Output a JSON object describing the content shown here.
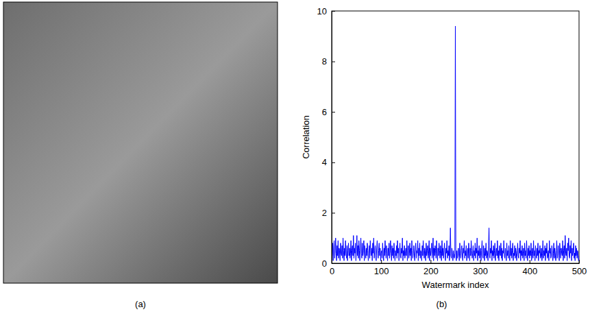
{
  "chart_data": [
    {
      "type": "image",
      "caption": "(a)"
    },
    {
      "type": "line",
      "caption": "(b)",
      "x_label": "Watermark index",
      "y_label": "Correlation",
      "color": "#0000ff",
      "xlim": [
        0,
        500
      ],
      "ylim": [
        0,
        10
      ],
      "xticks": [
        0,
        100,
        200,
        300,
        400,
        500
      ],
      "yticks": [
        0,
        2,
        4,
        6,
        8,
        10
      ],
      "x": [
        1,
        2,
        3,
        4,
        5,
        6,
        7,
        8,
        9,
        10,
        11,
        12,
        13,
        14,
        15,
        16,
        17,
        18,
        19,
        20,
        21,
        22,
        23,
        24,
        25,
        26,
        27,
        28,
        29,
        30,
        31,
        32,
        33,
        34,
        35,
        36,
        37,
        38,
        39,
        40,
        41,
        42,
        43,
        44,
        45,
        46,
        47,
        48,
        49,
        50,
        51,
        52,
        53,
        54,
        55,
        56,
        57,
        58,
        59,
        60,
        61,
        62,
        63,
        64,
        65,
        66,
        67,
        68,
        69,
        70,
        71,
        72,
        73,
        74,
        75,
        76,
        77,
        78,
        79,
        80,
        81,
        82,
        83,
        84,
        85,
        86,
        87,
        88,
        89,
        90,
        91,
        92,
        93,
        94,
        95,
        96,
        97,
        98,
        99,
        100,
        101,
        102,
        103,
        104,
        105,
        106,
        107,
        108,
        109,
        110,
        111,
        112,
        113,
        114,
        115,
        116,
        117,
        118,
        119,
        120,
        121,
        122,
        123,
        124,
        125,
        126,
        127,
        128,
        129,
        130,
        131,
        132,
        133,
        134,
        135,
        136,
        137,
        138,
        139,
        140,
        141,
        142,
        143,
        144,
        145,
        146,
        147,
        148,
        149,
        150,
        151,
        152,
        153,
        154,
        155,
        156,
        157,
        158,
        159,
        160,
        161,
        162,
        163,
        164,
        165,
        166,
        167,
        168,
        169,
        170,
        171,
        172,
        173,
        174,
        175,
        176,
        177,
        178,
        179,
        180,
        181,
        182,
        183,
        184,
        185,
        186,
        187,
        188,
        189,
        190,
        191,
        192,
        193,
        194,
        195,
        196,
        197,
        198,
        199,
        200,
        201,
        202,
        203,
        204,
        205,
        206,
        207,
        208,
        209,
        210,
        211,
        212,
        213,
        214,
        215,
        216,
        217,
        218,
        219,
        220,
        221,
        222,
        223,
        224,
        225,
        226,
        227,
        228,
        229,
        230,
        231,
        232,
        233,
        234,
        235,
        236,
        237,
        238,
        239,
        240,
        241,
        242,
        243,
        244,
        245,
        246,
        247,
        248,
        249,
        250,
        251,
        252,
        253,
        254,
        255,
        256,
        257,
        258,
        259,
        260,
        261,
        262,
        263,
        264,
        265,
        266,
        267,
        268,
        269,
        270,
        271,
        272,
        273,
        274,
        275,
        276,
        277,
        278,
        279,
        280,
        281,
        282,
        283,
        284,
        285,
        286,
        287,
        288,
        289,
        290,
        291,
        292,
        293,
        294,
        295,
        296,
        297,
        298,
        299,
        300,
        301,
        302,
        303,
        304,
        305,
        306,
        307,
        308,
        309,
        310,
        311,
        312,
        313,
        314,
        315,
        316,
        317,
        318,
        319,
        320,
        321,
        322,
        323,
        324,
        325,
        326,
        327,
        328,
        329,
        330,
        331,
        332,
        333,
        334,
        335,
        336,
        337,
        338,
        339,
        340,
        341,
        342,
        343,
        344,
        345,
        346,
        347,
        348,
        349,
        350,
        351,
        352,
        353,
        354,
        355,
        356,
        357,
        358,
        359,
        360,
        361,
        362,
        363,
        364,
        365,
        366,
        367,
        368,
        369,
        370,
        371,
        372,
        373,
        374,
        375,
        376,
        377,
        378,
        379,
        380,
        381,
        382,
        383,
        384,
        385,
        386,
        387,
        388,
        389,
        390,
        391,
        392,
        393,
        394,
        395,
        396,
        397,
        398,
        399,
        400,
        401,
        402,
        403,
        404,
        405,
        406,
        407,
        408,
        409,
        410,
        411,
        412,
        413,
        414,
        415,
        416,
        417,
        418,
        419,
        420,
        421,
        422,
        423,
        424,
        425,
        426,
        427,
        428,
        429,
        430,
        431,
        432,
        433,
        434,
        435,
        436,
        437,
        438,
        439,
        440,
        441,
        442,
        443,
        444,
        445,
        446,
        447,
        448,
        449,
        450,
        451,
        452,
        453,
        454,
        455,
        456,
        457,
        458,
        459,
        460,
        461,
        462,
        463,
        464,
        465,
        466,
        467,
        468,
        469,
        470,
        471,
        472,
        473,
        474,
        475,
        476,
        477,
        478,
        479,
        480,
        481,
        482,
        483,
        484,
        485,
        486,
        487,
        488,
        489,
        490,
        491,
        492,
        493,
        494,
        495,
        496,
        497,
        498,
        499,
        500
      ],
      "values": [
        0.3,
        0.8,
        0.1,
        0.6,
        0.9,
        0.2,
        0.5,
        1.0,
        0.4,
        0.1,
        0.7,
        0.3,
        0.9,
        0.2,
        0.6,
        0.5,
        0.1,
        0.8,
        0.4,
        0.3,
        0.7,
        0.2,
        1.0,
        0.5,
        0.1,
        0.6,
        0.3,
        0.9,
        0.4,
        0.2,
        0.7,
        0.1,
        0.5,
        0.8,
        0.3,
        0.6,
        0.2,
        0.4,
        0.9,
        0.1,
        0.5,
        0.7,
        0.3,
        1.1,
        0.2,
        0.6,
        0.4,
        0.8,
        0.1,
        0.5,
        1.1,
        0.3,
        0.7,
        0.2,
        0.9,
        0.5,
        0.1,
        0.6,
        1.0,
        0.4,
        0.2,
        0.8,
        0.3,
        0.5,
        0.9,
        0.1,
        0.7,
        0.4,
        0.2,
        0.6,
        0.3,
        0.8,
        0.5,
        0.1,
        0.4,
        0.7,
        0.2,
        0.9,
        0.5,
        0.3,
        0.6,
        0.1,
        0.8,
        0.4,
        1.0,
        0.2,
        0.5,
        0.7,
        0.3,
        0.1,
        0.6,
        0.9,
        0.4,
        0.2,
        0.5,
        0.8,
        0.3,
        0.6,
        0.1,
        0.4,
        0.5,
        0.2,
        0.8,
        0.4,
        0.1,
        0.6,
        0.3,
        0.9,
        0.5,
        0.2,
        0.7,
        0.4,
        0.1,
        0.6,
        0.3,
        0.8,
        0.2,
        0.5,
        0.9,
        0.4,
        0.1,
        0.7,
        0.3,
        0.6,
        0.2,
        0.8,
        0.4,
        0.1,
        0.5,
        0.3,
        0.7,
        0.2,
        0.9,
        0.4,
        0.6,
        0.1,
        0.5,
        0.8,
        0.3,
        0.2,
        0.6,
        0.4,
        1.0,
        0.1,
        0.5,
        0.3,
        0.7,
        0.2,
        0.4,
        0.6,
        0.3,
        0.9,
        0.1,
        0.5,
        0.7,
        0.2,
        0.4,
        0.8,
        0.3,
        0.6,
        0.1,
        0.9,
        0.5,
        0.2,
        0.4,
        0.7,
        0.3,
        0.1,
        0.6,
        0.8,
        0.2,
        0.5,
        0.4,
        0.9,
        0.1,
        0.6,
        0.3,
        0.8,
        0.2,
        0.5,
        0.4,
        0.1,
        0.7,
        0.3,
        0.9,
        0.5,
        0.2,
        0.6,
        0.4,
        0.1,
        0.8,
        0.3,
        0.5,
        0.7,
        0.2,
        0.4,
        0.9,
        0.1,
        0.6,
        0.3,
        0.5,
        0.8,
        0.2,
        0.4,
        1.0,
        0.1,
        0.6,
        0.3,
        0.7,
        0.5,
        0.2,
        0.9,
        0.4,
        0.1,
        0.6,
        0.3,
        0.8,
        0.5,
        0.2,
        0.7,
        0.4,
        0.1,
        0.9,
        0.3,
        0.6,
        0.2,
        0.5,
        0.8,
        0.3,
        0.1,
        0.6,
        0.4,
        0.9,
        0.2,
        0.5,
        0.3,
        0.7,
        0.1,
        0.4,
        1.4,
        0.3,
        0.2,
        0.6,
        0.4,
        0.1,
        0.5,
        0.3,
        0.2,
        0.4,
        9.4,
        0.3,
        0.1,
        0.5,
        0.2,
        0.4,
        0.6,
        0.3,
        0.1,
        0.8,
        0.4,
        0.2,
        0.5,
        0.7,
        0.3,
        0.1,
        0.6,
        0.4,
        0.9,
        0.2,
        0.5,
        0.3,
        0.7,
        0.1,
        0.4,
        0.6,
        0.2,
        0.8,
        0.4,
        0.1,
        0.6,
        0.3,
        0.9,
        0.5,
        0.2,
        0.4,
        0.7,
        0.1,
        0.5,
        0.3,
        0.8,
        0.2,
        0.6,
        0.4,
        1.0,
        0.1,
        0.5,
        0.3,
        0.7,
        0.2,
        0.4,
        0.6,
        0.1,
        0.5,
        0.9,
        0.3,
        0.2,
        0.7,
        0.4,
        0.1,
        0.6,
        0.3,
        0.8,
        0.2,
        0.5,
        0.4,
        0.1,
        0.7,
        1.4,
        0.3,
        0.2,
        0.6,
        0.4,
        0.9,
        0.1,
        0.5,
        0.3,
        0.7,
        0.2,
        0.5,
        0.8,
        0.1,
        0.4,
        0.6,
        0.3,
        0.9,
        0.2,
        0.5,
        0.1,
        0.7,
        0.4,
        0.3,
        0.8,
        0.2,
        0.6,
        0.1,
        0.5,
        0.4,
        0.9,
        0.3,
        0.2,
        0.6,
        0.4,
        0.1,
        0.8,
        0.3,
        0.5,
        0.2,
        0.7,
        0.4,
        0.1,
        0.9,
        0.3,
        0.6,
        0.2,
        0.5,
        0.8,
        0.1,
        0.4,
        0.3,
        0.7,
        0.2,
        0.6,
        0.4,
        0.1,
        0.5,
        0.8,
        0.3,
        0.2,
        0.6,
        0.4,
        0.9,
        0.1,
        0.5,
        0.3,
        0.7,
        0.2,
        0.4,
        0.6,
        0.1,
        0.8,
        0.3,
        0.5,
        0.2,
        0.9,
        0.4,
        0.1,
        0.6,
        0.3,
        0.7,
        0.2,
        0.5,
        0.3,
        0.8,
        0.1,
        0.4,
        0.6,
        0.2,
        0.9,
        0.3,
        0.5,
        0.1,
        0.7,
        0.4,
        0.2,
        0.6,
        0.3,
        0.8,
        0.1,
        0.5,
        0.4,
        0.7,
        0.2,
        0.3,
        0.6,
        0.1,
        0.4,
        0.9,
        0.2,
        0.5,
        0.3,
        0.7,
        0.1,
        0.6,
        0.4,
        0.8,
        0.2,
        0.3,
        0.5,
        0.1,
        0.9,
        0.4,
        0.6,
        0.2,
        0.3,
        0.7,
        0.5,
        0.1,
        0.4,
        0.8,
        0.2,
        0.6,
        0.3,
        0.1,
        0.5,
        0.9,
        0.2,
        0.4,
        0.7,
        0.3,
        0.1,
        0.8,
        0.5,
        0.2,
        0.6,
        0.4,
        0.3,
        0.9,
        0.1,
        0.5,
        0.7,
        0.2,
        1.1,
        0.4,
        0.3,
        0.6,
        0.1,
        0.8,
        0.5,
        1.0,
        0.3,
        0.2,
        0.7,
        0.4,
        0.9,
        0.1,
        0.6,
        0.3,
        0.5,
        0.8,
        0.2,
        0.4,
        0.1,
        0.7,
        0.3,
        0.6,
        0.2,
        0.5,
        0.4,
        0.1,
        0.3
      ]
    }
  ]
}
